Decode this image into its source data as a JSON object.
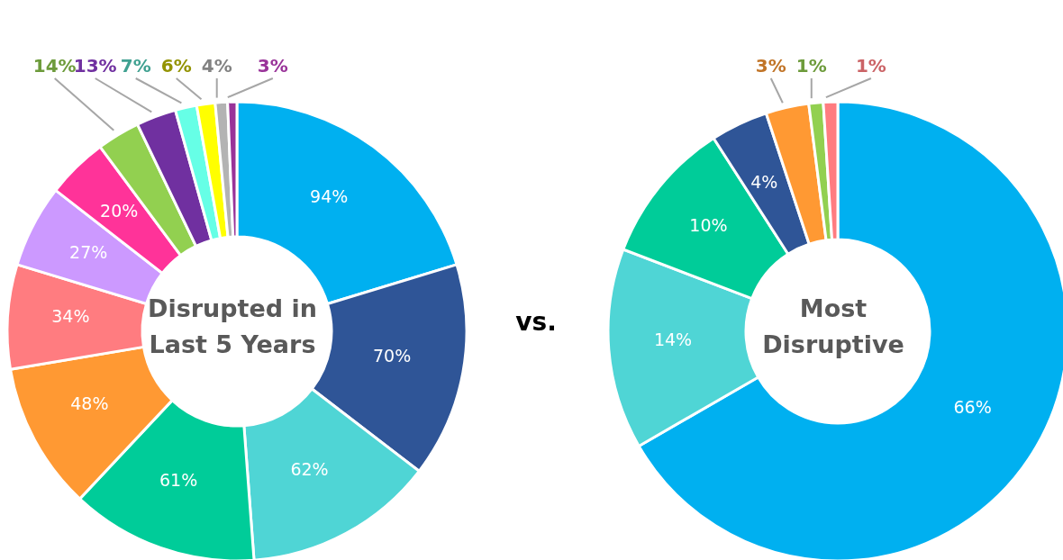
{
  "chart_data": [
    {
      "type": "donut",
      "title": "Disrupted in Last 5 Years",
      "annotations": [
        "vs."
      ],
      "categories": [
        null,
        null,
        null,
        null,
        null,
        null,
        null,
        null,
        null,
        null,
        null,
        null,
        null,
        null
      ],
      "values": [
        94,
        70,
        62,
        61,
        48,
        34,
        27,
        20,
        14,
        13,
        7,
        6,
        4,
        3
      ],
      "value_labels": [
        "94%",
        "70%",
        "62%",
        "61%",
        "48%",
        "34%",
        "27%",
        "20%",
        "14%",
        "13%",
        "7%",
        "6%",
        "4%",
        "3%"
      ],
      "colors": [
        "#00b0f0",
        "#2f5597",
        "#4fd5d5",
        "#00cc99",
        "#ff9933",
        "#ff7c80",
        "#cc99ff",
        "#ff3399",
        "#92d050",
        "#7030a0",
        "#66ffe6",
        "#ffff00",
        "#b3b3b3",
        "#993399"
      ],
      "legend": false
    },
    {
      "type": "donut",
      "title": "Most Disruptive",
      "categories": [
        null,
        null,
        null,
        null,
        null,
        null,
        null
      ],
      "values": [
        66,
        14,
        10,
        4,
        3,
        1,
        1
      ],
      "value_labels": [
        "66%",
        "14%",
        "10%",
        "4%",
        "3%",
        "1%",
        "1%"
      ],
      "colors": [
        "#00b0f0",
        "#4fd5d5",
        "#00cc99",
        "#2f5597",
        "#ff9933",
        "#92d050",
        "#ff7c80"
      ],
      "legend": false
    }
  ]
}
